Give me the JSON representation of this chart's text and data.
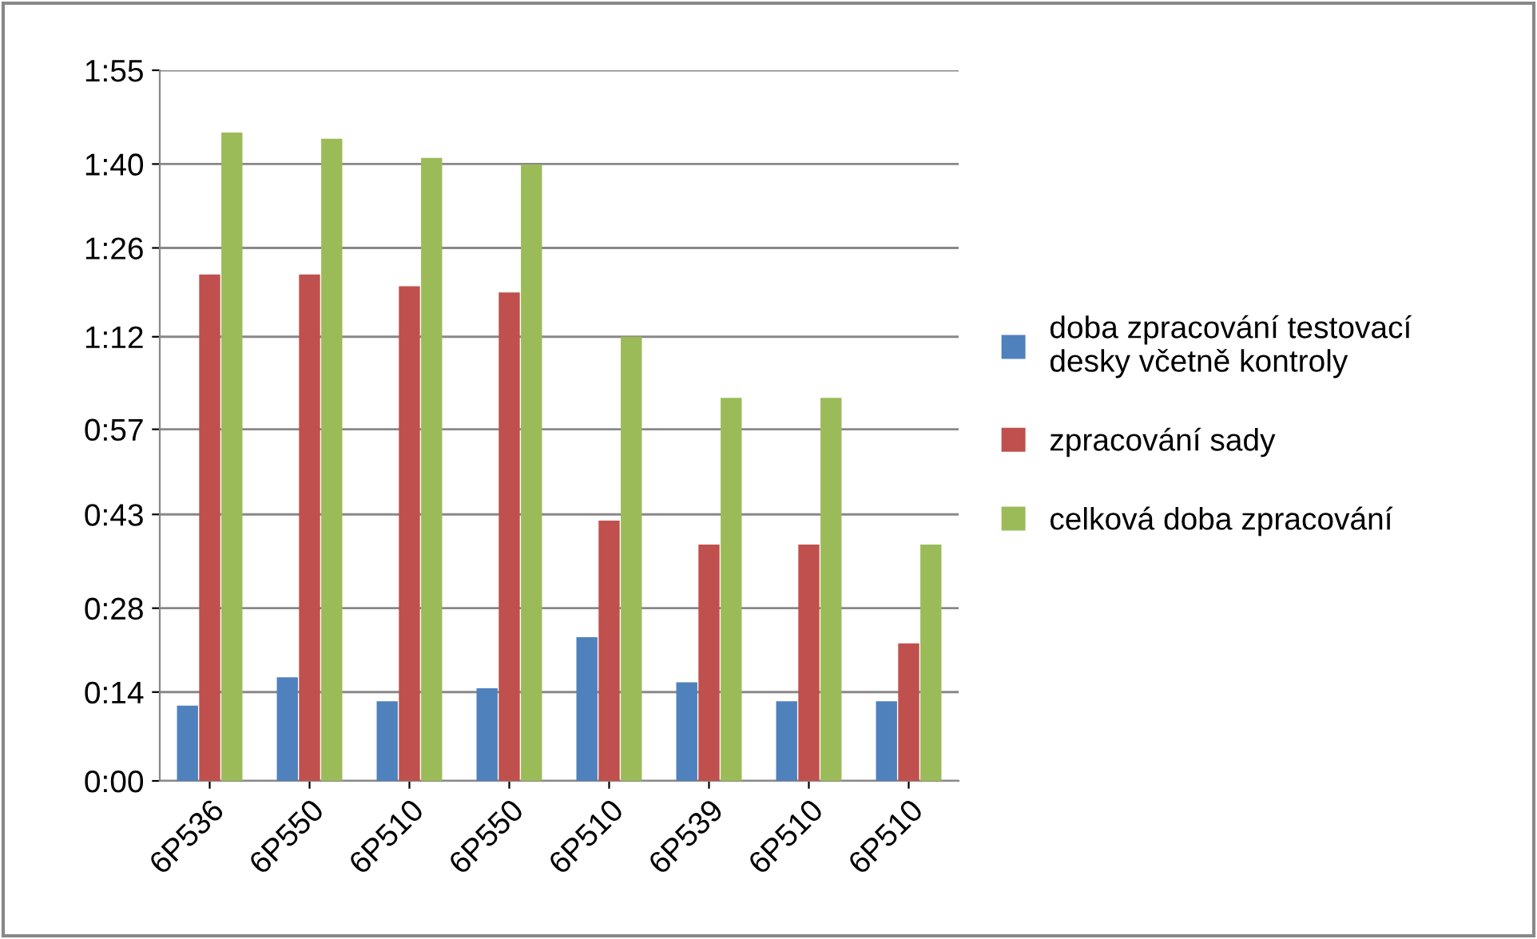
{
  "chart_data": {
    "type": "bar",
    "categories": [
      "6P536",
      "6P550",
      "6P510",
      "6P550",
      "6P510",
      "6P539",
      "6P510",
      "6P510"
    ],
    "series": [
      {
        "name": "doba zpracování testovací\ndesky včetně kontroly",
        "color": "#4f81bd",
        "values": [
          12.2,
          16.8,
          12.9,
          15.0,
          23.3,
          16.0,
          12.9,
          12.9
        ]
      },
      {
        "name": "zpracování sady",
        "color": "#c0504d",
        "values": [
          82.1,
          82.1,
          80.2,
          79.2,
          42.2,
          38.3,
          38.3,
          22.3
        ]
      },
      {
        "name": "celková doba zpracování",
        "color": "#9bbb59",
        "values": [
          105.1,
          104.1,
          101.0,
          99.9,
          72.0,
          62.1,
          62.1,
          38.3
        ]
      }
    ],
    "ylim": [
      0,
      115.2
    ],
    "yticks": [
      {
        "value": 0,
        "label": "0:00"
      },
      {
        "value": 14.4,
        "label": "0:14"
      },
      {
        "value": 28,
        "label": "0:28"
      },
      {
        "value": 43.2,
        "label": "0:43"
      },
      {
        "value": 57,
        "label": "0:57"
      },
      {
        "value": 72,
        "label": "1:12"
      },
      {
        "value": 86.4,
        "label": "1:26"
      },
      {
        "value": 100,
        "label": "1:40"
      },
      {
        "value": 115.2,
        "label": "1:55"
      }
    ],
    "grid": "y",
    "legend": "right"
  }
}
